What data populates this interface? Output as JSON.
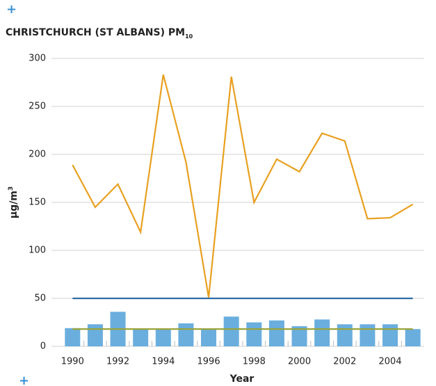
{
  "chart_data": {
    "type": "bar",
    "title": "CHRISTCHURCH  (ST ALBANS) PM",
    "title_subscript": "10",
    "xlabel": "Year",
    "ylabel": "µg/m",
    "ylabel_superscript": "3",
    "categories": [
      1990,
      null,
      1992,
      null,
      1994,
      null,
      1996,
      null,
      1998,
      null,
      2000,
      null,
      2002,
      null,
      2004,
      null
    ],
    "series": [
      {
        "type": "bar",
        "color": "#6aaede",
        "values": [
          19,
          23,
          36,
          18,
          18,
          24,
          18,
          31,
          25,
          27,
          21,
          28,
          23,
          23,
          23,
          18
        ]
      },
      {
        "type": "line",
        "color": "#e8a020",
        "values": [
          189,
          145,
          169,
          119,
          283,
          192,
          51,
          281,
          150,
          195,
          182,
          222,
          214,
          133,
          134,
          148
        ]
      },
      {
        "type": "line",
        "color": "#2e6da4",
        "values": [
          50,
          50,
          50,
          50,
          50,
          50,
          50,
          50,
          50,
          50,
          50,
          50,
          50,
          50,
          50,
          50
        ]
      },
      {
        "type": "line",
        "color": "#9aa43a",
        "values": [
          18,
          18,
          18,
          18,
          18,
          18,
          18,
          18,
          18,
          18,
          18,
          18,
          18,
          18,
          18,
          18
        ]
      }
    ],
    "ylim": [
      0,
      300
    ],
    "yticks": [
      0,
      50,
      100,
      150,
      200,
      250,
      300
    ],
    "grid": true
  }
}
